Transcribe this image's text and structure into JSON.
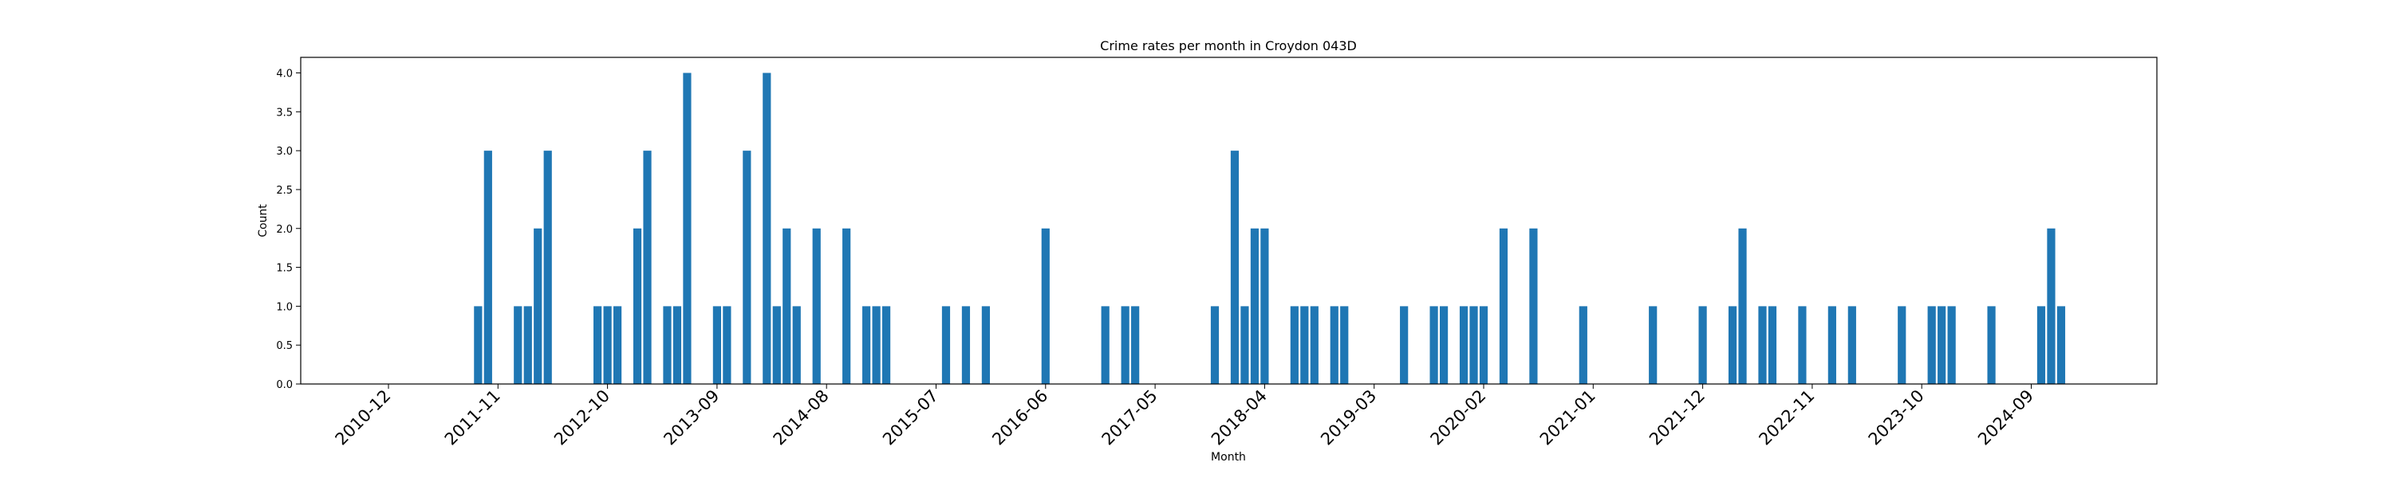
{
  "chart_data": {
    "type": "bar",
    "title": "Crime rates per month in Croydon 043D",
    "xlabel": "Month",
    "ylabel": "Count",
    "ylim": [
      0,
      4.2
    ],
    "y_ticks": [
      "0.0",
      "0.5",
      "1.0",
      "1.5",
      "2.0",
      "2.5",
      "3.0",
      "3.5",
      "4.0"
    ],
    "x_ticks": [
      "2010-12",
      "2011-11",
      "2012-10",
      "2013-09",
      "2014-08",
      "2015-07",
      "2016-06",
      "2017-05",
      "2018-04",
      "2019-03",
      "2020-02",
      "2021-01",
      "2021-12",
      "2022-11",
      "2023-10",
      "2024-09"
    ],
    "grid": false,
    "bar_color": "#1f77b4",
    "categories": [
      "2011-09",
      "2011-10",
      "2012-01",
      "2012-02",
      "2012-03",
      "2012-04",
      "2012-09",
      "2012-10",
      "2012-11",
      "2013-01",
      "2013-02",
      "2013-04",
      "2013-05",
      "2013-06",
      "2013-09",
      "2013-10",
      "2013-12",
      "2014-02",
      "2014-03",
      "2014-04",
      "2014-05",
      "2014-07",
      "2014-10",
      "2014-12",
      "2015-01",
      "2015-02",
      "2015-08",
      "2015-10",
      "2015-12",
      "2016-06",
      "2017-00",
      "2017-02",
      "2017-03",
      "2017-11",
      "2018-01",
      "2018-02",
      "2018-03",
      "2018-04",
      "2018-07",
      "2018-08",
      "2018-09",
      "2018-11",
      "2018-12",
      "2019-06",
      "2019-09",
      "2019-10",
      "2019-12",
      "2020-01",
      "2020-02",
      "2020-04",
      "2020-07",
      "2021-00",
      "2021-07",
      "2022-00",
      "2022-03",
      "2022-04",
      "2022-06",
      "2022-07",
      "2022-10",
      "2023-01",
      "2023-03",
      "2023-08",
      "2023-11",
      "2023-12",
      "2024-01",
      "2024-05",
      "2024-10",
      "2024-11",
      "2024-12"
    ],
    "values": [
      1,
      3,
      1,
      1,
      2,
      3,
      1,
      1,
      1,
      2,
      3,
      1,
      1,
      4,
      1,
      1,
      3,
      4,
      1,
      2,
      1,
      2,
      2,
      1,
      1,
      1,
      1,
      1,
      1,
      2,
      1,
      1,
      1,
      1,
      3,
      1,
      2,
      2,
      1,
      1,
      1,
      1,
      1,
      1,
      1,
      1,
      1,
      1,
      1,
      2,
      2,
      1,
      1,
      1,
      1,
      2,
      1,
      1,
      1,
      1,
      1,
      1,
      1,
      1,
      1,
      1,
      1,
      2,
      1
    ]
  }
}
